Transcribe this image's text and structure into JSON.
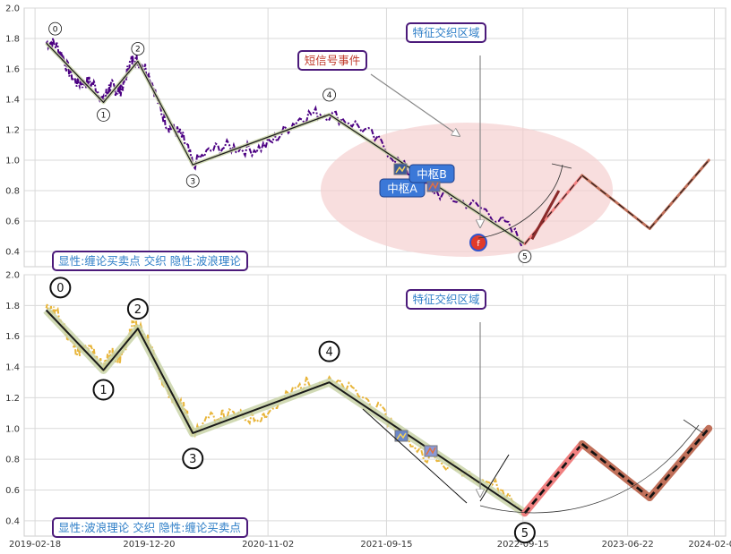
{
  "colors": {
    "price_top": "#4b0082",
    "price_bottom": "#e8b53a",
    "wave_line": "#1a1a1a",
    "wave_glow": "#c9d3a8",
    "proj_red": "#f08080",
    "proj_brown": "#c0705a",
    "ellipse": "#f4cccc",
    "label_border": "#4b1a7a",
    "label_text_blue": "#2f7fc8",
    "label_text_red": "#c0392b",
    "zhongshu_bg": "#3b78d8"
  },
  "chart_data": [
    {
      "type": "line",
      "panel": "top",
      "ylim": [
        0.3,
        2.0
      ],
      "y_ticks": [
        0.4,
        0.6,
        0.8,
        1.0,
        1.2,
        1.4,
        1.6,
        1.8,
        2.0
      ],
      "x_range": [
        "2019-01-20",
        "2024-03-10"
      ],
      "grid": true,
      "wave_points": [
        {
          "label": "0",
          "date": "2019-03-20",
          "value": 1.77
        },
        {
          "label": "1",
          "date": "2019-08-20",
          "value": 1.38
        },
        {
          "label": "2",
          "date": "2019-11-20",
          "value": 1.65
        },
        {
          "label": "3",
          "date": "2020-04-15",
          "value": 0.97
        },
        {
          "label": "4",
          "date": "2021-04-15",
          "value": 1.3
        },
        {
          "label": "5",
          "date": "2022-09-20",
          "value": 0.45
        }
      ],
      "projection": [
        {
          "date": "2022-09-20",
          "value": 0.45
        },
        {
          "date": "2023-02-20",
          "value": 0.9
        },
        {
          "date": "2023-08-20",
          "value": 0.55
        },
        {
          "date": "2024-01-25",
          "value": 1.0
        }
      ],
      "annotations": {
        "feature_zone": "特征交织区域",
        "short_signal": "短信号事件",
        "zhongshu_a": "中枢A",
        "zhongshu_b": "中枢B",
        "legend": "显性:缠论买卖点 交织 隐性:波浪理论"
      }
    },
    {
      "type": "line",
      "panel": "bottom",
      "ylim": [
        0.3,
        2.0
      ],
      "y_ticks": [
        0.4,
        0.6,
        0.8,
        1.0,
        1.2,
        1.4,
        1.6,
        1.8,
        2.0
      ],
      "x_ticks": [
        "2019-02-18",
        "2019-12-20",
        "2020-11-02",
        "2021-09-15",
        "2022-09-15",
        "2023-06-22",
        "2024-02-09"
      ],
      "grid": true,
      "wave_points": [
        {
          "label": "0",
          "date": "2019-03-20",
          "value": 1.77
        },
        {
          "label": "1",
          "date": "2019-08-20",
          "value": 1.38
        },
        {
          "label": "2",
          "date": "2019-11-20",
          "value": 1.65
        },
        {
          "label": "3",
          "date": "2020-04-15",
          "value": 0.97
        },
        {
          "label": "4",
          "date": "2021-04-15",
          "value": 1.3
        },
        {
          "label": "5",
          "date": "2022-09-20",
          "value": 0.45
        }
      ],
      "projection": [
        {
          "date": "2022-09-20",
          "value": 0.45
        },
        {
          "date": "2023-02-20",
          "value": 0.9
        },
        {
          "date": "2023-08-20",
          "value": 0.55
        },
        {
          "date": "2024-01-25",
          "value": 1.0
        }
      ],
      "annotations": {
        "feature_zone": "特征交织区域",
        "legend": "显性:波浪理论 交织 隐性:缠论买卖点"
      }
    }
  ]
}
